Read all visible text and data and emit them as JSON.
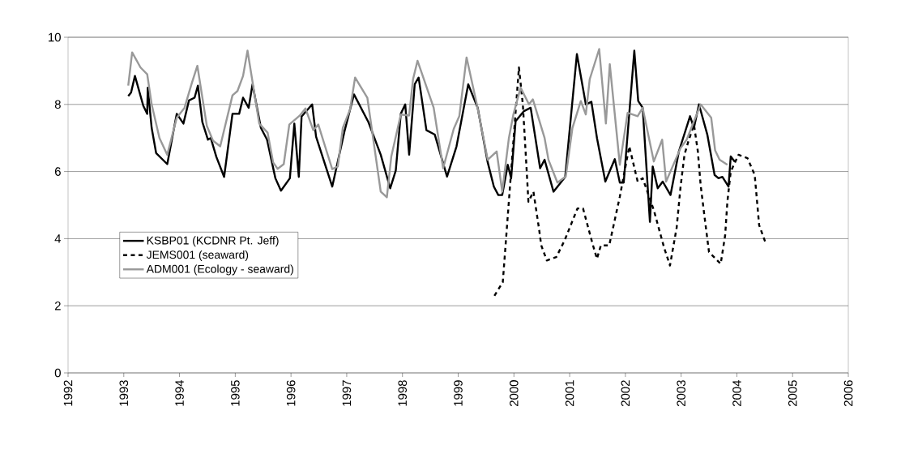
{
  "chart_data": {
    "type": "line",
    "xlim": [
      1992,
      2006
    ],
    "xticks": [
      1992,
      1993,
      1994,
      1995,
      1996,
      1997,
      1998,
      1999,
      2000,
      2001,
      2002,
      2003,
      2004,
      2005,
      2006
    ],
    "ylim": [
      0,
      10
    ],
    "yticks": [
      0,
      2,
      4,
      6,
      8,
      10
    ],
    "grid": "y",
    "legend": "left",
    "marker": "none",
    "series": [
      {
        "name": "KSBP01 (KCDNR Pt. Jeff)",
        "color": "#000000",
        "line_style": "solid",
        "x": [
          1993.08,
          1993.13,
          1993.2,
          1993.35,
          1993.42,
          1993.43,
          1993.5,
          1993.58,
          1993.78,
          1993.95,
          1994.07,
          1994.17,
          1994.27,
          1994.33,
          1994.41,
          1994.51,
          1994.56,
          1994.66,
          1994.8,
          1994.95,
          1995.07,
          1995.14,
          1995.24,
          1995.31,
          1995.46,
          1995.57,
          1995.72,
          1995.82,
          1995.98,
          1996.06,
          1996.14,
          1996.19,
          1996.38,
          1996.45,
          1996.74,
          1996.96,
          1997.13,
          1997.39,
          1997.61,
          1997.78,
          1997.88,
          1997.97,
          1998.05,
          1998.12,
          1998.22,
          1998.29,
          1998.43,
          1998.58,
          1998.8,
          1998.97,
          1999.18,
          1999.35,
          1999.53,
          1999.64,
          1999.72,
          1999.79,
          1999.89,
          1999.95,
          2000.03,
          2000.18,
          2000.3,
          2000.47,
          2000.55,
          2000.71,
          2000.92,
          2001.13,
          2001.29,
          2001.39,
          2001.49,
          2001.64,
          2001.81,
          2001.9,
          2001.97,
          2002.16,
          2002.23,
          2002.31,
          2002.44,
          2002.49,
          2002.58,
          2002.67,
          2002.81,
          2002.96,
          2003.16,
          2003.23,
          2003.32,
          2003.47,
          2003.6,
          2003.67,
          2003.74,
          2003.85,
          2003.89,
          2003.96
        ],
        "values": [
          8.25,
          8.35,
          8.85,
          7.96,
          7.72,
          8.5,
          7.3,
          6.55,
          6.22,
          7.72,
          7.43,
          8.12,
          8.2,
          8.56,
          7.47,
          6.95,
          7.0,
          6.44,
          5.84,
          7.72,
          7.72,
          8.2,
          7.9,
          8.6,
          7.3,
          6.95,
          5.8,
          5.43,
          5.8,
          7.43,
          5.84,
          7.64,
          8.0,
          7.04,
          5.55,
          7.2,
          8.3,
          7.47,
          6.5,
          5.5,
          6.03,
          7.72,
          8.0,
          6.5,
          8.6,
          8.8,
          7.23,
          7.1,
          5.85,
          6.75,
          8.6,
          7.9,
          6.27,
          5.55,
          5.3,
          5.3,
          6.2,
          5.8,
          7.5,
          7.8,
          7.9,
          6.1,
          6.35,
          5.4,
          5.84,
          9.5,
          8.0,
          8.08,
          7.0,
          5.7,
          6.37,
          5.67,
          5.67,
          9.6,
          8.1,
          7.9,
          4.5,
          6.15,
          5.5,
          5.7,
          5.3,
          6.6,
          7.65,
          7.3,
          8.0,
          7.1,
          5.9,
          5.8,
          5.84,
          5.55,
          6.45,
          6.3
        ]
      },
      {
        "name": "JEMS001 (seaward)",
        "color": "#000000",
        "line_style": "dashed",
        "x": [
          1999.65,
          1999.8,
          2000.09,
          2000.16,
          2000.23,
          2000.26,
          2000.35,
          2000.45,
          2000.49,
          2000.59,
          2000.76,
          2000.91,
          2001.14,
          2001.24,
          2001.41,
          2001.49,
          2001.56,
          2001.71,
          2001.9,
          2002.07,
          2002.22,
          2002.31,
          2002.51,
          2002.7,
          2002.8,
          2002.92,
          2002.99,
          2003.06,
          2003.13,
          2003.23,
          2003.3,
          2003.35,
          2003.42,
          2003.5,
          2003.71,
          2003.79,
          2003.83,
          2003.89,
          2004.03,
          2004.19,
          2004.32,
          2004.4,
          2004.51
        ],
        "values": [
          2.3,
          2.7,
          9.1,
          8.0,
          6.0,
          5.1,
          5.4,
          4.3,
          3.8,
          3.35,
          3.45,
          3.95,
          4.9,
          4.9,
          3.85,
          3.4,
          3.8,
          3.8,
          5.25,
          6.75,
          5.7,
          5.8,
          4.85,
          3.7,
          3.2,
          4.33,
          5.55,
          6.5,
          6.9,
          7.4,
          6.6,
          5.6,
          4.65,
          3.6,
          3.25,
          4.1,
          5.1,
          6.0,
          6.5,
          6.4,
          5.9,
          4.4,
          3.9
        ]
      },
      {
        "name": "ADM001 (Ecology - seaward)",
        "color": "#999999",
        "line_style": "solid",
        "x": [
          1993.08,
          1993.15,
          1993.3,
          1993.42,
          1993.5,
          1993.64,
          1993.78,
          1993.95,
          1994.09,
          1994.22,
          1994.32,
          1994.49,
          1994.6,
          1994.73,
          1994.95,
          1995.04,
          1995.14,
          1995.22,
          1995.43,
          1995.58,
          1995.68,
          1995.76,
          1995.87,
          1995.97,
          1996.16,
          1996.26,
          1996.4,
          1996.49,
          1996.64,
          1996.74,
          1996.84,
          1996.93,
          1997.06,
          1997.15,
          1997.37,
          1997.61,
          1997.72,
          1997.8,
          1997.97,
          1998.12,
          1998.19,
          1998.27,
          1998.56,
          1998.73,
          1998.92,
          1999.02,
          1999.15,
          1999.33,
          1999.53,
          1999.69,
          1999.79,
          1999.91,
          1999.99,
          2000.12,
          2000.27,
          2000.34,
          2000.55,
          2000.62,
          2000.78,
          2000.93,
          2001.05,
          2001.2,
          2001.29,
          2001.36,
          2001.53,
          2001.65,
          2001.72,
          2001.9,
          2002.04,
          2002.22,
          2002.31,
          2002.51,
          2002.66,
          2002.73,
          2002.99,
          2003.1,
          2003.35,
          2003.54,
          2003.61,
          2003.69,
          2003.83
        ],
        "values": [
          8.56,
          9.55,
          9.1,
          8.9,
          8.0,
          7.0,
          6.5,
          7.6,
          7.9,
          8.63,
          9.15,
          7.36,
          6.92,
          6.75,
          8.27,
          8.4,
          8.85,
          9.6,
          7.43,
          7.16,
          6.27,
          6.08,
          6.22,
          7.4,
          7.67,
          7.88,
          7.23,
          7.4,
          6.6,
          6.07,
          6.15,
          7.3,
          7.85,
          8.8,
          8.2,
          5.4,
          5.23,
          6.45,
          7.7,
          7.67,
          8.75,
          9.3,
          7.9,
          6.1,
          7.27,
          7.65,
          9.4,
          8.04,
          6.35,
          6.6,
          5.4,
          7.0,
          7.7,
          8.5,
          8.0,
          8.15,
          7.0,
          6.35,
          5.67,
          5.85,
          7.3,
          8.1,
          7.7,
          8.75,
          9.65,
          7.43,
          9.2,
          6.2,
          7.75,
          7.65,
          7.9,
          6.3,
          6.95,
          5.7,
          6.7,
          6.95,
          8.0,
          7.6,
          6.63,
          6.35,
          6.2
        ]
      }
    ]
  }
}
